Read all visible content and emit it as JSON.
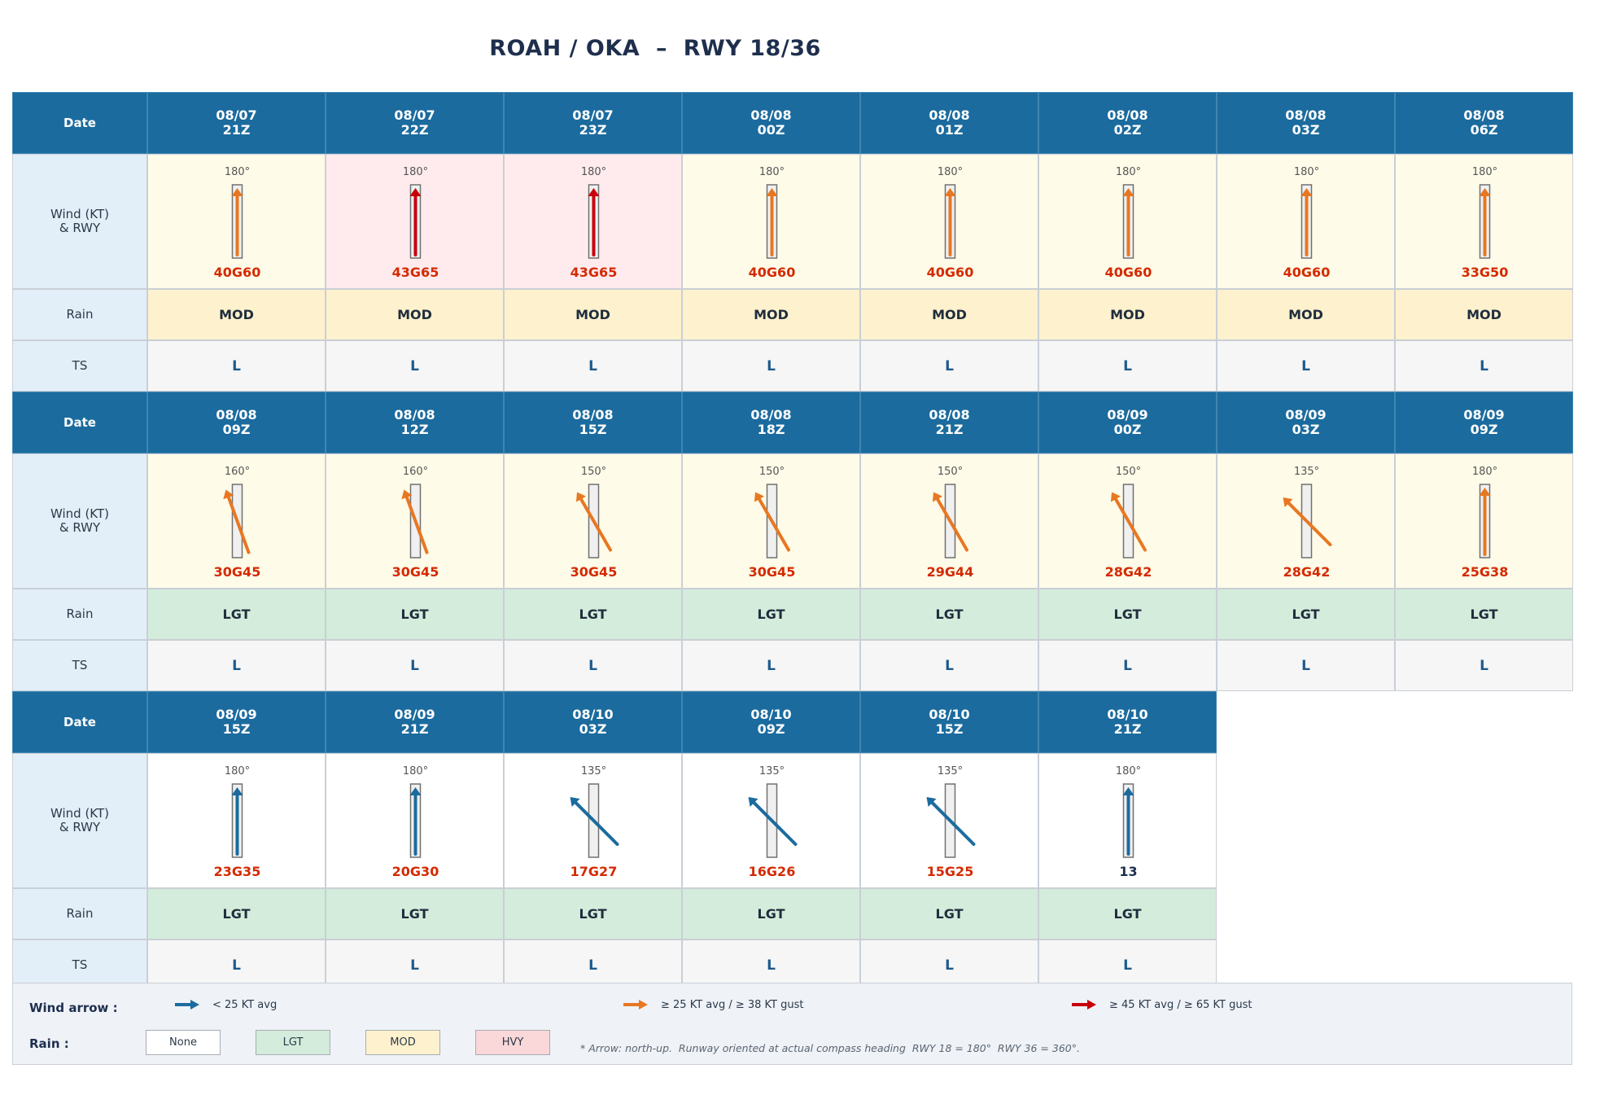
{
  "title": "ROAH / OKA  –  RWY 18/36",
  "colors": {
    "header": "#1b6b9e",
    "label_bg": "#e3eff8",
    "wind_low": "#1b6b9e",
    "wind_mid": "#e87722",
    "wind_high": "#c8000a",
    "bg_low": "#ffffff",
    "bg_mid": "#fefbe8",
    "bg_high": "#ffebee",
    "rain_none": "#ffffff",
    "rain_lgt": "#d4ecdb",
    "rain_mod": "#fef1cd",
    "rain_hvy": "#fad7d8",
    "speed_red": "#d42a00",
    "speed_dark": "#1e2f4d"
  },
  "row_labels": {
    "date": "Date",
    "wind": [
      "Wind (KT)",
      "& RWY"
    ],
    "rain": "Rain",
    "ts": "TS"
  },
  "chart_data": {
    "type": "table",
    "runway_heading_deg": 180,
    "blocks": [
      [
        {
          "date": "08/07",
          "time": "21Z",
          "dir": 180,
          "dir_label": "180°",
          "wind": "40G60",
          "level": "mid",
          "rain": "MOD",
          "ts": "L"
        },
        {
          "date": "08/07",
          "time": "22Z",
          "dir": 180,
          "dir_label": "180°",
          "wind": "43G65",
          "level": "high",
          "rain": "MOD",
          "ts": "L"
        },
        {
          "date": "08/07",
          "time": "23Z",
          "dir": 180,
          "dir_label": "180°",
          "wind": "43G65",
          "level": "high",
          "rain": "MOD",
          "ts": "L"
        },
        {
          "date": "08/08",
          "time": "00Z",
          "dir": 180,
          "dir_label": "180°",
          "wind": "40G60",
          "level": "mid",
          "rain": "MOD",
          "ts": "L"
        },
        {
          "date": "08/08",
          "time": "01Z",
          "dir": 180,
          "dir_label": "180°",
          "wind": "40G60",
          "level": "mid",
          "rain": "MOD",
          "ts": "L"
        },
        {
          "date": "08/08",
          "time": "02Z",
          "dir": 180,
          "dir_label": "180°",
          "wind": "40G60",
          "level": "mid",
          "rain": "MOD",
          "ts": "L"
        },
        {
          "date": "08/08",
          "time": "03Z",
          "dir": 180,
          "dir_label": "180°",
          "wind": "40G60",
          "level": "mid",
          "rain": "MOD",
          "ts": "L"
        },
        {
          "date": "08/08",
          "time": "06Z",
          "dir": 180,
          "dir_label": "180°",
          "wind": "33G50",
          "level": "mid",
          "rain": "MOD",
          "ts": "L"
        }
      ],
      [
        {
          "date": "08/08",
          "time": "09Z",
          "dir": 160,
          "dir_label": "160°",
          "wind": "30G45",
          "level": "mid",
          "rain": "LGT",
          "ts": "L"
        },
        {
          "date": "08/08",
          "time": "12Z",
          "dir": 160,
          "dir_label": "160°",
          "wind": "30G45",
          "level": "mid",
          "rain": "LGT",
          "ts": "L"
        },
        {
          "date": "08/08",
          "time": "15Z",
          "dir": 150,
          "dir_label": "150°",
          "wind": "30G45",
          "level": "mid",
          "rain": "LGT",
          "ts": "L"
        },
        {
          "date": "08/08",
          "time": "18Z",
          "dir": 150,
          "dir_label": "150°",
          "wind": "30G45",
          "level": "mid",
          "rain": "LGT",
          "ts": "L"
        },
        {
          "date": "08/08",
          "time": "21Z",
          "dir": 150,
          "dir_label": "150°",
          "wind": "29G44",
          "level": "mid",
          "rain": "LGT",
          "ts": "L"
        },
        {
          "date": "08/09",
          "time": "00Z",
          "dir": 150,
          "dir_label": "150°",
          "wind": "28G42",
          "level": "mid",
          "rain": "LGT",
          "ts": "L"
        },
        {
          "date": "08/09",
          "time": "03Z",
          "dir": 135,
          "dir_label": "135°",
          "wind": "28G42",
          "level": "mid",
          "rain": "LGT",
          "ts": "L"
        },
        {
          "date": "08/09",
          "time": "09Z",
          "dir": 180,
          "dir_label": "180°",
          "wind": "25G38",
          "level": "mid",
          "rain": "LGT",
          "ts": "L"
        }
      ],
      [
        {
          "date": "08/09",
          "time": "15Z",
          "dir": 180,
          "dir_label": "180°",
          "wind": "23G35",
          "level": "low",
          "rain": "LGT",
          "ts": "L"
        },
        {
          "date": "08/09",
          "time": "21Z",
          "dir": 180,
          "dir_label": "180°",
          "wind": "20G30",
          "level": "low",
          "rain": "LGT",
          "ts": "L"
        },
        {
          "date": "08/10",
          "time": "03Z",
          "dir": 135,
          "dir_label": "135°",
          "wind": "17G27",
          "level": "low",
          "rain": "LGT",
          "ts": "L"
        },
        {
          "date": "08/10",
          "time": "09Z",
          "dir": 135,
          "dir_label": "135°",
          "wind": "16G26",
          "level": "low",
          "rain": "LGT",
          "ts": "L"
        },
        {
          "date": "08/10",
          "time": "15Z",
          "dir": 135,
          "dir_label": "135°",
          "wind": "15G25",
          "level": "low",
          "rain": "LGT",
          "ts": "L"
        },
        {
          "date": "08/10",
          "time": "21Z",
          "dir": 180,
          "dir_label": "180°",
          "wind": "13",
          "level": "low",
          "rain": "LGT",
          "ts": "L"
        }
      ]
    ]
  },
  "legend": {
    "wind_title": "Wind arrow :",
    "wind_items": [
      {
        "label": "< 25 KT avg",
        "level": "low"
      },
      {
        "label": "≥ 25 KT avg / ≥ 38 KT gust",
        "level": "mid"
      },
      {
        "label": "≥ 45 KT avg / ≥ 65 KT gust",
        "level": "high"
      }
    ],
    "rain_title": "Rain :",
    "rain_items": [
      {
        "label": "None",
        "key": "rain_none"
      },
      {
        "label": "LGT",
        "key": "rain_lgt"
      },
      {
        "label": "MOD",
        "key": "rain_mod"
      },
      {
        "label": "HVY",
        "key": "rain_hvy"
      }
    ],
    "note": "* Arrow: north-up.  Runway oriented at actual compass heading  RWY 18 = 180°  RWY 36 = 360°."
  }
}
